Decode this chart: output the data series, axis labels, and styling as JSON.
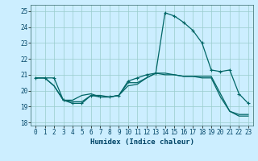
{
  "xlabel": "Humidex (Indice chaleur)",
  "bg_color": "#cceeff",
  "line_color": "#006666",
  "grid_color": "#99cccc",
  "xlim": [
    -0.5,
    23.5
  ],
  "ylim": [
    17.8,
    25.4
  ],
  "yticks": [
    18,
    19,
    20,
    21,
    22,
    23,
    24,
    25
  ],
  "xticks": [
    0,
    1,
    2,
    3,
    4,
    5,
    6,
    7,
    8,
    9,
    10,
    11,
    12,
    13,
    14,
    15,
    16,
    17,
    18,
    19,
    20,
    21,
    22,
    23
  ],
  "line1_x": [
    0,
    1,
    2,
    3,
    4,
    5,
    6,
    7,
    8,
    9,
    10,
    11,
    12,
    13,
    14,
    15,
    16,
    17,
    18,
    19,
    20,
    21,
    22,
    23
  ],
  "line1_y": [
    20.8,
    20.8,
    20.8,
    19.4,
    19.2,
    19.2,
    19.7,
    19.6,
    19.6,
    19.7,
    20.6,
    20.8,
    21.0,
    21.1,
    24.9,
    24.7,
    24.3,
    23.8,
    23.0,
    21.3,
    21.2,
    21.3,
    19.8,
    19.2
  ],
  "line2_x": [
    0,
    1,
    2,
    3,
    4,
    5,
    6,
    7,
    8,
    9,
    10,
    11,
    12,
    13,
    14,
    15,
    16,
    17,
    18,
    19,
    20,
    21,
    22,
    23
  ],
  "line2_y": [
    20.8,
    20.8,
    20.3,
    19.4,
    19.4,
    19.7,
    19.8,
    19.6,
    19.6,
    19.7,
    20.5,
    20.5,
    20.8,
    21.1,
    21.0,
    21.0,
    20.9,
    20.9,
    20.9,
    20.9,
    19.8,
    18.7,
    18.4,
    18.4
  ],
  "line3_x": [
    0,
    1,
    2,
    3,
    4,
    5,
    6,
    7,
    8,
    9,
    10,
    11,
    12,
    13,
    14,
    15,
    16,
    17,
    18,
    19,
    20,
    21,
    22,
    23
  ],
  "line3_y": [
    20.8,
    20.8,
    20.3,
    19.4,
    19.3,
    19.3,
    19.7,
    19.7,
    19.6,
    19.7,
    20.3,
    20.4,
    20.8,
    21.1,
    21.1,
    21.0,
    20.9,
    20.9,
    20.8,
    20.8,
    19.6,
    18.7,
    18.5,
    18.5
  ]
}
